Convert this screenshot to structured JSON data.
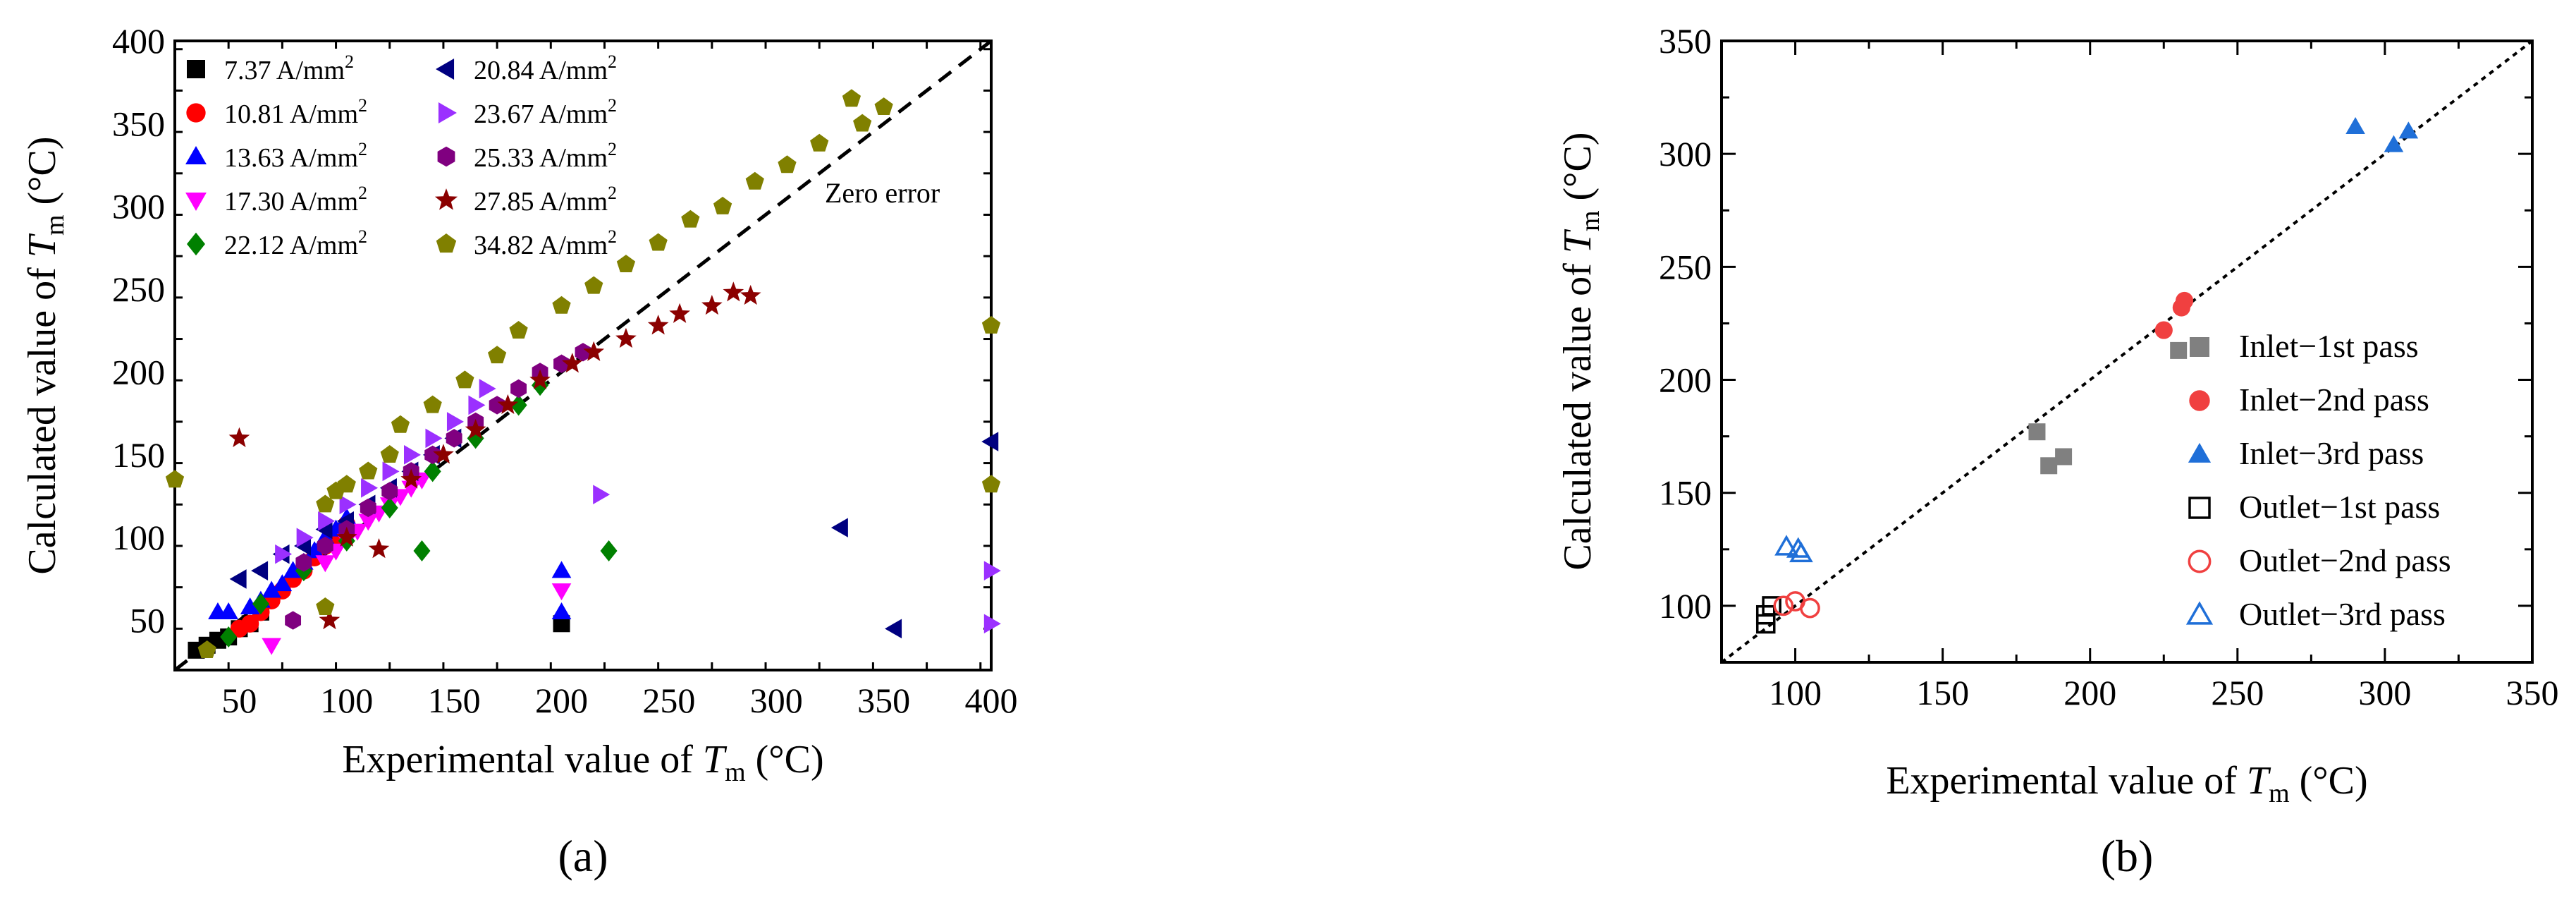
{
  "chart_data": [
    {
      "panel_label": "(a)",
      "type": "scatter",
      "xlabel": "Experimental value of T_m (°C)",
      "ylabel": "Calculated value of T_m (°C)",
      "xlim": [
        20,
        400
      ],
      "ylim": [
        20,
        400
      ],
      "xticks": [
        50,
        100,
        150,
        200,
        250,
        300,
        350,
        400
      ],
      "yticks": [
        50,
        100,
        150,
        200,
        250,
        300,
        350,
        400
      ],
      "grid": false,
      "legend_placement": "top-left",
      "reference_line": {
        "label": "Zero error",
        "style": "dashed"
      },
      "series": [
        {
          "name": "7.37 A/mm²",
          "marker": "square",
          "color": "#000000",
          "points": [
            [
              30,
              32
            ],
            [
              35,
              35
            ],
            [
              40,
              38
            ],
            [
              45,
              40
            ],
            [
              50,
              45
            ],
            [
              55,
              48
            ],
            [
              60,
              55
            ],
            [
              200,
              48
            ]
          ]
        },
        {
          "name": "10.81 A/mm²",
          "marker": "circle",
          "color": "#ff0000",
          "points": [
            [
              50,
              45
            ],
            [
              55,
              48
            ],
            [
              60,
              55
            ],
            [
              65,
              62
            ],
            [
              70,
              68
            ],
            [
              75,
              75
            ],
            [
              80,
              80
            ],
            [
              85,
              88
            ],
            [
              90,
              95
            ],
            [
              95,
              100
            ],
            [
              100,
              108
            ]
          ]
        },
        {
          "name": "13.63 A/mm²",
          "marker": "triangle-up",
          "color": "#0000ff",
          "points": [
            [
              40,
              55
            ],
            [
              45,
              55
            ],
            [
              55,
              58
            ],
            [
              60,
              62
            ],
            [
              65,
              68
            ],
            [
              70,
              72
            ],
            [
              75,
              80
            ],
            [
              80,
              85
            ],
            [
              85,
              92
            ],
            [
              90,
              100
            ],
            [
              95,
              105
            ],
            [
              100,
              112
            ],
            [
              200,
              55
            ],
            [
              200,
              80
            ]
          ]
        },
        {
          "name": "17.30 A/mm²",
          "marker": "triangle-down",
          "color": "#ff00ff",
          "points": [
            [
              65,
              35
            ],
            [
              90,
              85
            ],
            [
              95,
              92
            ],
            [
              100,
              98
            ],
            [
              105,
              104
            ],
            [
              110,
              110
            ],
            [
              115,
              115
            ],
            [
              120,
              120
            ],
            [
              125,
              125
            ],
            [
              130,
              130
            ],
            [
              135,
              135
            ],
            [
              200,
              68
            ]
          ]
        },
        {
          "name": "22.12 A/mm²",
          "marker": "diamond",
          "color": "#008000",
          "points": [
            [
              45,
              40
            ],
            [
              60,
              60
            ],
            [
              80,
              80
            ],
            [
              100,
              98
            ],
            [
              120,
              118
            ],
            [
              140,
              140
            ],
            [
              160,
              160
            ],
            [
              180,
              180
            ],
            [
              190,
              192
            ],
            [
              135,
              92
            ],
            [
              222,
              92
            ]
          ]
        },
        {
          "name": "20.84 A/mm²",
          "marker": "triangle-left",
          "color": "#000080",
          "points": [
            [
              50,
              75
            ],
            [
              60,
              80
            ],
            [
              70,
              90
            ],
            [
              80,
              95
            ],
            [
              90,
              105
            ],
            [
              100,
              110
            ],
            [
              110,
              120
            ],
            [
              120,
              130
            ],
            [
              130,
              140
            ],
            [
              140,
              150
            ],
            [
              150,
              160
            ],
            [
              330,
              106
            ],
            [
              355,
              45
            ],
            [
              400,
              158
            ]
          ]
        },
        {
          "name": "23.67 A/mm²",
          "marker": "triangle-right",
          "color": "#9b30ff",
          "points": [
            [
              70,
              90
            ],
            [
              80,
              100
            ],
            [
              90,
              110
            ],
            [
              100,
              120
            ],
            [
              110,
              130
            ],
            [
              120,
              140
            ],
            [
              130,
              150
            ],
            [
              140,
              160
            ],
            [
              150,
              170
            ],
            [
              160,
              180
            ],
            [
              165,
              190
            ],
            [
              218,
              126
            ],
            [
              400,
              80
            ],
            [
              400,
              48
            ]
          ]
        },
        {
          "name": "25.33 A/mm²",
          "marker": "hexagon",
          "color": "#800080",
          "points": [
            [
              75,
              50
            ],
            [
              80,
              85
            ],
            [
              90,
              95
            ],
            [
              100,
              105
            ],
            [
              110,
              118
            ],
            [
              120,
              128
            ],
            [
              130,
              140
            ],
            [
              140,
              150
            ],
            [
              150,
              160
            ],
            [
              160,
              170
            ],
            [
              170,
              180
            ],
            [
              180,
              190
            ],
            [
              190,
              200
            ],
            [
              200,
              205
            ],
            [
              210,
              212
            ]
          ]
        },
        {
          "name": "27.85 A/mm²",
          "marker": "star",
          "color": "#8b0000",
          "points": [
            [
              50,
              160
            ],
            [
              92,
              50
            ],
            [
              100,
              100
            ],
            [
              115,
              93
            ],
            [
              130,
              135
            ],
            [
              145,
              150
            ],
            [
              160,
              165
            ],
            [
              175,
              180
            ],
            [
              190,
              195
            ],
            [
              205,
              205
            ],
            [
              215,
              212
            ],
            [
              230,
              220
            ],
            [
              245,
              228
            ],
            [
              255,
              235
            ],
            [
              270,
              240
            ],
            [
              280,
              248
            ],
            [
              288,
              246
            ]
          ]
        },
        {
          "name": "34.82 A/mm²",
          "marker": "pentagon",
          "color": "#808000",
          "points": [
            [
              20,
              135
            ],
            [
              35,
              32
            ],
            [
              90,
              58
            ],
            [
              90,
              120
            ],
            [
              95,
              128
            ],
            [
              100,
              132
            ],
            [
              110,
              140
            ],
            [
              120,
              150
            ],
            [
              125,
              168
            ],
            [
              140,
              180
            ],
            [
              155,
              195
            ],
            [
              170,
              210
            ],
            [
              180,
              225
            ],
            [
              200,
              240
            ],
            [
              215,
              252
            ],
            [
              230,
              265
            ],
            [
              245,
              278
            ],
            [
              260,
              292
            ],
            [
              275,
              300
            ],
            [
              290,
              315
            ],
            [
              305,
              325
            ],
            [
              320,
              338
            ],
            [
              335,
              365
            ],
            [
              340,
              350
            ],
            [
              350,
              360
            ],
            [
              400,
              228
            ],
            [
              400,
              132
            ]
          ]
        }
      ]
    },
    {
      "panel_label": "(b)",
      "type": "scatter",
      "xlabel": "Experimental value of T_m (°C)",
      "ylabel": "Calculated value of T_m (°C)",
      "xlim": [
        75,
        350
      ],
      "ylim": [
        75,
        350
      ],
      "xticks": [
        100,
        150,
        200,
        250,
        300,
        350
      ],
      "yticks": [
        100,
        150,
        200,
        250,
        300,
        350
      ],
      "grid": false,
      "legend_placement": "center-right",
      "reference_line": {
        "style": "dotted"
      },
      "series": [
        {
          "name": "Inlet−1st pass",
          "marker": "square",
          "filled": true,
          "color": "#808080",
          "points": [
            [
              182,
              177
            ],
            [
              186,
              162
            ],
            [
              191,
              166
            ],
            [
              230,
              213
            ]
          ]
        },
        {
          "name": "Inlet−2nd pass",
          "marker": "circle",
          "filled": true,
          "color": "#f04040",
          "points": [
            [
              225,
              222
            ],
            [
              231,
              232
            ],
            [
              232,
              235
            ]
          ]
        },
        {
          "name": "Inlet−3rd pass",
          "marker": "triangle-up",
          "filled": true,
          "color": "#1f6fd8",
          "points": [
            [
              290,
              312
            ],
            [
              303,
              304
            ],
            [
              308,
              310
            ]
          ]
        },
        {
          "name": "Outlet−1st pass",
          "marker": "square",
          "filled": false,
          "color": "#000000",
          "points": [
            [
              90,
              92
            ],
            [
              90,
              96
            ],
            [
              92,
              100
            ]
          ]
        },
        {
          "name": "Outlet−2nd pass",
          "marker": "circle",
          "filled": false,
          "color": "#f04040",
          "points": [
            [
              96,
              100
            ],
            [
              100,
              102
            ],
            [
              105,
              99
            ]
          ]
        },
        {
          "name": "Outlet−3rd pass",
          "marker": "triangle-up",
          "filled": false,
          "color": "#1f6fd8",
          "points": [
            [
              97,
              126
            ],
            [
              101,
              125
            ],
            [
              102,
              123
            ]
          ]
        }
      ]
    }
  ]
}
